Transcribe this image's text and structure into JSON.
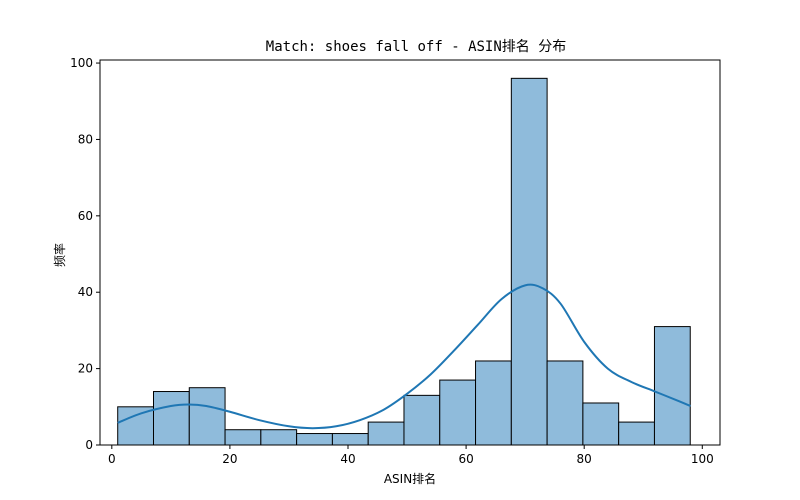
{
  "chart_data": {
    "type": "bar",
    "subtype": "histogram_with_kde",
    "title": "Match: shoes fall off - ASIN排名 分布",
    "xlabel": "ASIN排名",
    "ylabel": "频率",
    "xlim": [
      -2,
      103
    ],
    "ylim": [
      0,
      100.8
    ],
    "xticks": [
      0,
      20,
      40,
      60,
      80,
      100
    ],
    "yticks": [
      0,
      20,
      40,
      60,
      80,
      100
    ],
    "bin_edges": [
      1,
      7.06,
      13.12,
      19.18,
      25.24,
      31.3,
      37.36,
      43.42,
      49.48,
      55.54,
      61.6,
      67.66,
      73.72,
      79.78,
      85.84,
      91.9,
      97.96
    ],
    "values": [
      10,
      14,
      15,
      4,
      4,
      3,
      3,
      6,
      13,
      17,
      22,
      96,
      22,
      11,
      6,
      31
    ],
    "kde": {
      "x": [
        1,
        5,
        10,
        13,
        16,
        20,
        25,
        30,
        34,
        38,
        42,
        46,
        50,
        54,
        58,
        62,
        66,
        70,
        73,
        76,
        80,
        84,
        88,
        92,
        96,
        98
      ],
      "y": [
        5.8,
        8.3,
        10.2,
        10.6,
        10.2,
        8.7,
        6.5,
        4.9,
        4.4,
        4.9,
        6.5,
        9.2,
        13.4,
        18.5,
        24.8,
        31.5,
        38.2,
        41.8,
        41.0,
        37.0,
        27.0,
        20.0,
        16.5,
        14.0,
        11.5,
        10.2
      ]
    },
    "grid": false,
    "legend": null,
    "colors": {
      "bar_fill": "#8fbbdb",
      "bar_edge": "#000000",
      "kde_line": "#1f77b4"
    }
  }
}
